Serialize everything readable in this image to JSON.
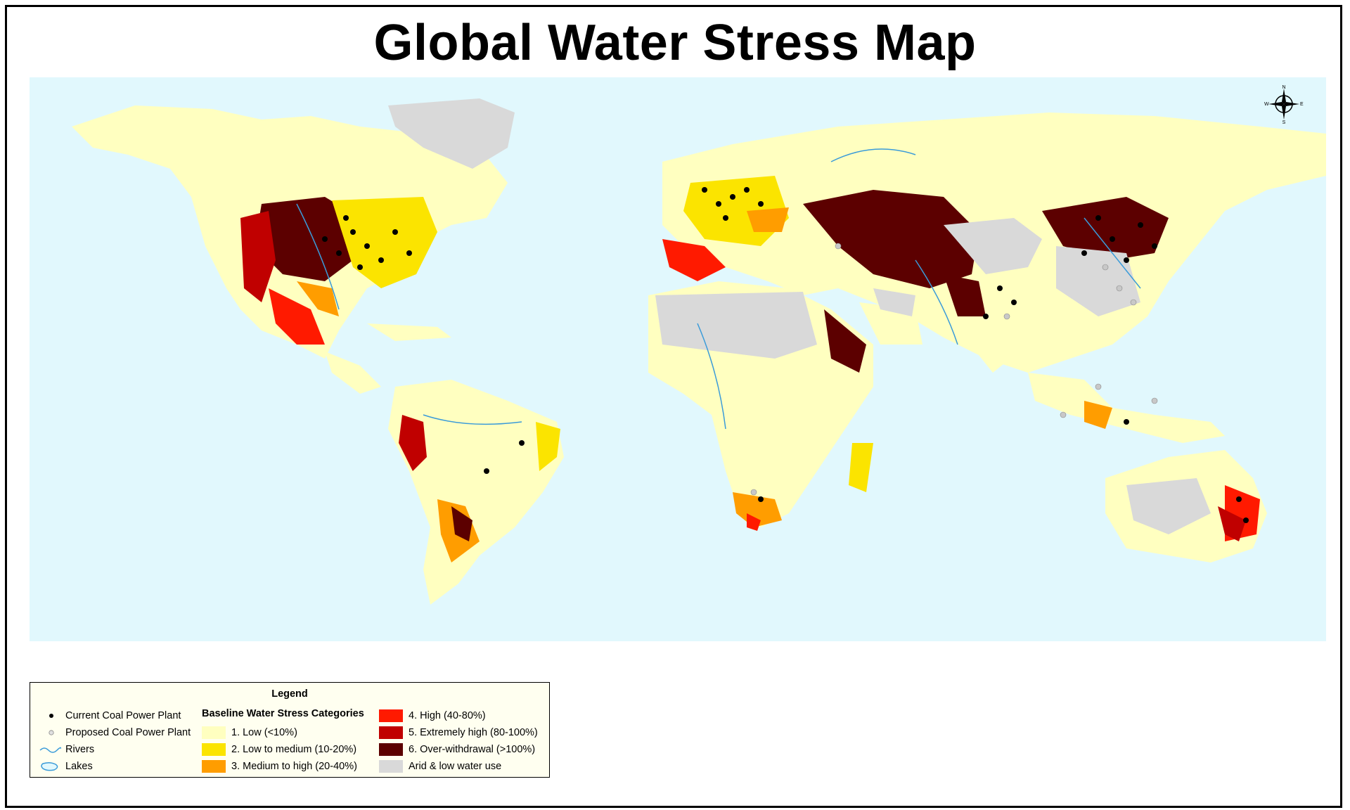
{
  "title": "Global Water Stress Map",
  "compass": {
    "n": "N",
    "s": "S",
    "e": "E",
    "w": "W"
  },
  "colors": {
    "ocean": "#e1f8fd",
    "low": "#ffffc0",
    "low_medium": "#fbe400",
    "medium_high": "#ff9d00",
    "high": "#ff1a00",
    "extremely_high": "#c00000",
    "over_withdrawal": "#5c0000",
    "arid": "#d9d9d9",
    "rivers": "#3a9bd9",
    "current_plant": "#000000",
    "proposed_plant": "#c8c8c8"
  },
  "legend": {
    "title": "Legend",
    "current_plant": "Current Coal Power Plant",
    "proposed_plant": "Proposed Coal Power Plant",
    "rivers": "Rivers",
    "lakes": "Lakes",
    "categories_header": "Baseline Water Stress Categories",
    "categories": [
      {
        "label": "1. Low (<10%)",
        "color": "#ffffc0"
      },
      {
        "label": "2. Low to medium (10-20%)",
        "color": "#fbe400"
      },
      {
        "label": "3. Medium to high (20-40%)",
        "color": "#ff9d00"
      },
      {
        "label": "4. High (40-80%)",
        "color": "#ff1a00"
      },
      {
        "label": "5. Extremely high (80-100%)",
        "color": "#c00000"
      },
      {
        "label": "6. Over-withdrawal (>100%)",
        "color": "#5c0000"
      },
      {
        "label": "Arid & low water use",
        "color": "#d9d9d9"
      }
    ]
  }
}
